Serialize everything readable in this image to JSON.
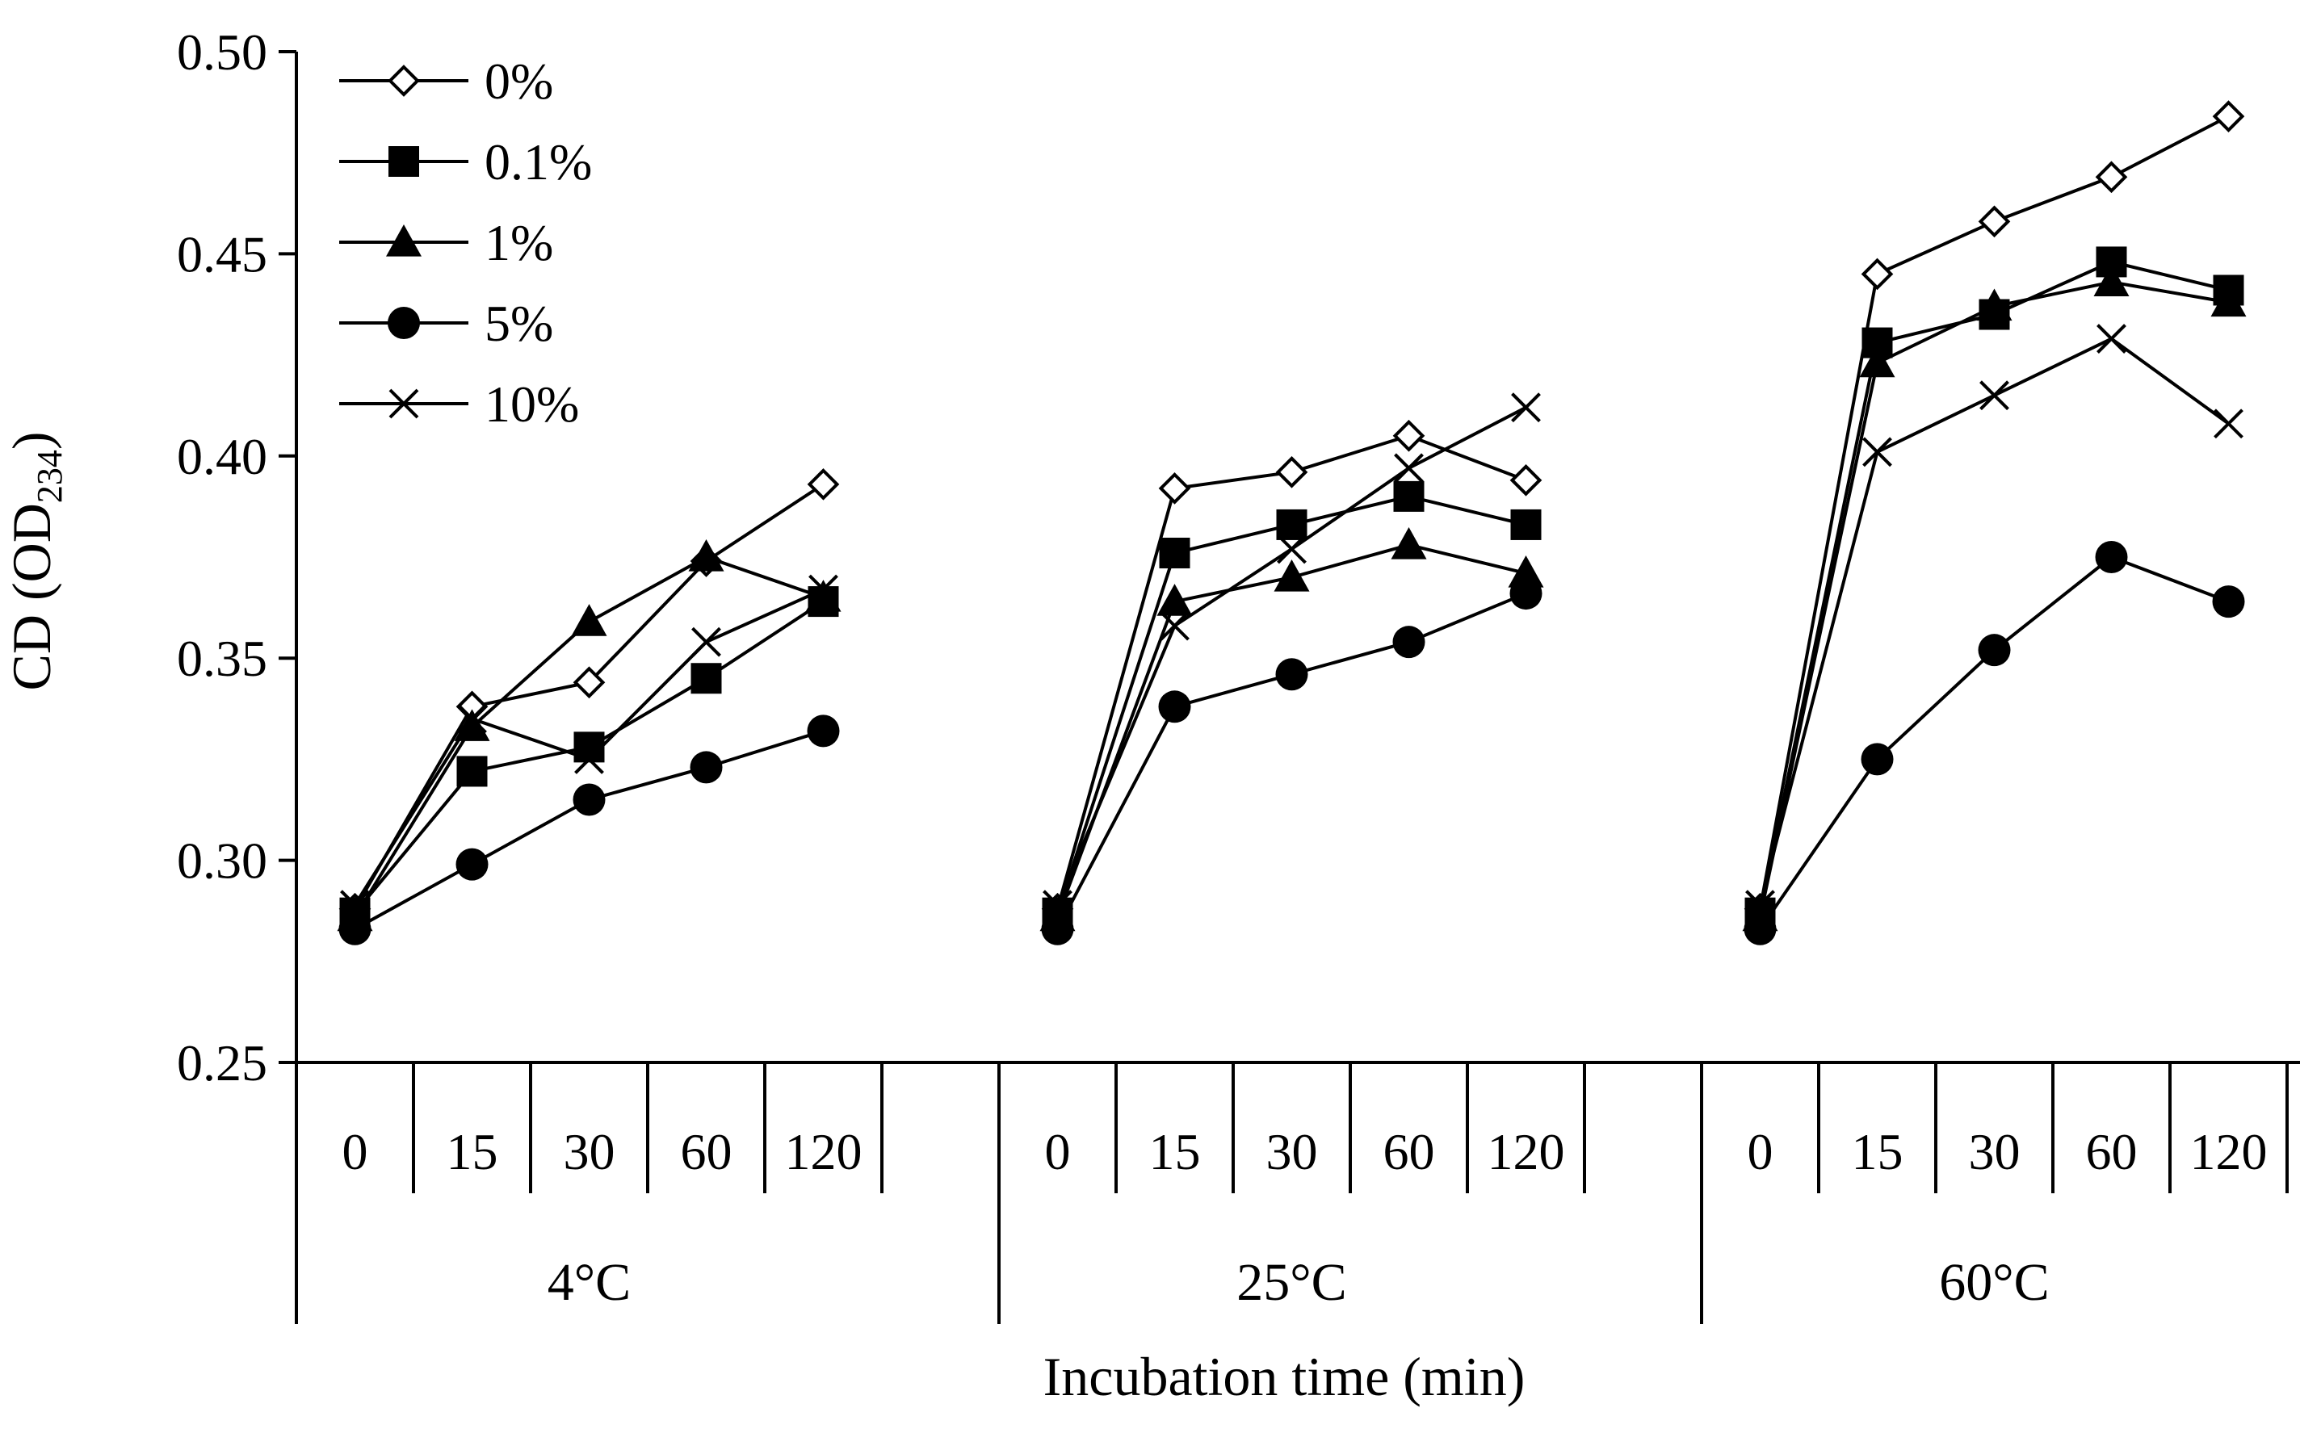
{
  "chart_data": {
    "type": "line",
    "title": "",
    "ylabel": {
      "main": "CD (OD",
      "sub": "234",
      "close": ")"
    },
    "xlabel": "Incubation time (min)",
    "ylim": [
      0.25,
      0.5
    ],
    "yticks": [
      "0.25",
      "0.30",
      "0.35",
      "0.40",
      "0.45",
      "0.50"
    ],
    "ytick_values": [
      0.25,
      0.3,
      0.35,
      0.4,
      0.45,
      0.5
    ],
    "grid": false,
    "legend_position": "top-left",
    "groups": [
      {
        "label": "4°C",
        "categories": [
          "0",
          "15",
          "30",
          "60",
          "120"
        ]
      },
      {
        "label": "25°C",
        "categories": [
          "0",
          "15",
          "30",
          "60",
          "120"
        ]
      },
      {
        "label": "60°C",
        "categories": [
          "0",
          "15",
          "30",
          "60",
          "120"
        ]
      }
    ],
    "series": [
      {
        "name": "0%",
        "marker": "diamond-open",
        "values": [
          [
            0.288,
            0.338,
            0.344,
            0.374,
            0.393
          ],
          [
            0.288,
            0.392,
            0.396,
            0.405,
            0.394
          ],
          [
            0.288,
            0.445,
            0.458,
            0.469,
            0.484
          ]
        ]
      },
      {
        "name": "0.1%",
        "marker": "square",
        "values": [
          [
            0.287,
            0.322,
            0.328,
            0.345,
            0.364
          ],
          [
            0.287,
            0.376,
            0.383,
            0.39,
            0.383
          ],
          [
            0.287,
            0.428,
            0.435,
            0.448,
            0.441
          ]
        ]
      },
      {
        "name": "1%",
        "marker": "triangle",
        "values": [
          [
            0.286,
            0.333,
            0.359,
            0.375,
            0.365
          ],
          [
            0.286,
            0.364,
            0.37,
            0.378,
            0.371
          ],
          [
            0.286,
            0.423,
            0.437,
            0.443,
            0.438
          ]
        ]
      },
      {
        "name": "5%",
        "marker": "circle",
        "values": [
          [
            0.283,
            0.299,
            0.315,
            0.323,
            0.332
          ],
          [
            0.283,
            0.338,
            0.346,
            0.354,
            0.366
          ],
          [
            0.283,
            0.325,
            0.352,
            0.375,
            0.364
          ]
        ]
      },
      {
        "name": "10%",
        "marker": "cross",
        "values": [
          [
            0.289,
            0.335,
            0.325,
            0.354,
            0.367
          ],
          [
            0.289,
            0.358,
            0.377,
            0.397,
            0.412
          ],
          [
            0.289,
            0.401,
            0.415,
            0.429,
            0.408
          ]
        ]
      }
    ]
  }
}
